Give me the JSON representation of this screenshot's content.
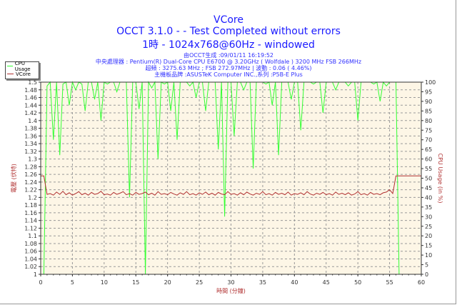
{
  "title": "VCore",
  "subtitle": "OCCT 3.1.0 -  - Test Completed without errors",
  "subtitle2": "1時 - 1024x768@60Hz - windowed",
  "info": [
    "由OCCT生成 :09/01/11 16:19:52",
    "中央處理器 : Pentium(R) Dual-Core CPU E6700 @ 3.20GHz ( Wolfdale ) 3200 MHz FSB 266MHz",
    "超頻 : 3275.63 MHz ; FSB 272.97MHz | 波動 : 0.06 ( 4.46%)",
    "主機板品牌 :ASUSTeK Computer INC.,系列 :P5B-E Plus"
  ],
  "colors": {
    "cpu": "#33ff33",
    "vcore": "#b03030",
    "plot_bg": "#fdf6e6",
    "title": "#1a1aff"
  },
  "chart_data": {
    "type": "line",
    "xlabel": "時間 (分鐘)",
    "ylabel": "電壓 (伏特)",
    "y2label": "CPU Usage (in %)",
    "xlim": [
      0,
      60
    ],
    "ylim": [
      1,
      1.5
    ],
    "y2lim": [
      0,
      100
    ],
    "xticks": [
      "0",
      "5",
      "10",
      "15",
      "20",
      "25",
      "30",
      "35",
      "40",
      "45",
      "50",
      "55",
      "60"
    ],
    "yticks": [
      "1",
      "1.02",
      "1.04",
      "1.06",
      "1.08",
      "1.1",
      "1.12",
      "1.14",
      "1.16",
      "1.18",
      "1.2",
      "1.22",
      "1.24",
      "1.26",
      "1.28",
      "1.3",
      "1.32",
      "1.34",
      "1.36",
      "1.38",
      "1.4",
      "1.42",
      "1.44",
      "1.46",
      "1.48",
      "1.5"
    ],
    "y2ticks": [
      "0",
      "5",
      "10",
      "15",
      "20",
      "25",
      "30",
      "35",
      "40",
      "45",
      "50",
      "55",
      "60",
      "65",
      "70",
      "75",
      "80",
      "85",
      "90",
      "95",
      "100"
    ],
    "legend": [
      "CPU Usage",
      "VCore"
    ],
    "legend_position": "top-left",
    "grid": true,
    "x_step": 0.5,
    "series": [
      {
        "name": "CPU Usage",
        "axis": "right",
        "values": [
          0,
          0,
          98,
          100,
          70,
          100,
          62,
          99,
          100,
          88,
          100,
          96,
          100,
          99,
          85,
          100,
          100,
          91,
          100,
          80,
          100,
          99,
          100,
          100,
          95,
          100,
          100,
          100,
          40,
          100,
          100,
          86,
          100,
          0,
          100,
          97,
          100,
          60,
          100,
          99,
          100,
          85,
          100,
          70,
          100,
          100,
          100,
          98,
          100,
          92,
          100,
          100,
          85,
          100,
          100,
          100,
          65,
          100,
          30,
          100,
          100,
          72,
          100,
          100,
          96,
          100,
          100,
          55,
          100,
          100,
          100,
          99,
          100,
          88,
          100,
          62,
          100,
          100,
          100,
          91,
          100,
          100,
          75,
          100,
          100,
          100,
          99,
          100,
          100,
          84,
          100,
          100,
          100,
          96,
          100,
          100,
          100,
          98,
          100,
          100,
          80,
          100,
          100,
          100,
          100,
          99,
          100,
          90,
          100,
          98,
          100,
          100,
          100,
          0,
          0,
          0,
          0,
          0,
          0,
          0,
          0
        ]
      },
      {
        "name": "VCore",
        "axis": "left",
        "values": [
          1.256,
          1.256,
          1.208,
          1.21,
          1.206,
          1.214,
          1.208,
          1.216,
          1.207,
          1.212,
          1.206,
          1.21,
          1.215,
          1.207,
          1.211,
          1.206,
          1.213,
          1.208,
          1.21,
          1.216,
          1.207,
          1.209,
          1.206,
          1.213,
          1.208,
          1.211,
          1.215,
          1.207,
          1.21,
          1.206,
          1.213,
          1.208,
          1.21,
          1.214,
          1.207,
          1.211,
          1.206,
          1.215,
          1.208,
          1.21,
          1.207,
          1.213,
          1.209,
          1.206,
          1.212,
          1.208,
          1.215,
          1.207,
          1.21,
          1.206,
          1.212,
          1.208,
          1.214,
          1.207,
          1.211,
          1.206,
          1.213,
          1.209,
          1.207,
          1.215,
          1.208,
          1.21,
          1.206,
          1.212,
          1.207,
          1.214,
          1.209,
          1.206,
          1.211,
          1.208,
          1.215,
          1.207,
          1.21,
          1.206,
          1.213,
          1.208,
          1.211,
          1.207,
          1.214,
          1.206,
          1.21,
          1.208,
          1.212,
          1.207,
          1.215,
          1.209,
          1.206,
          1.211,
          1.208,
          1.213,
          1.207,
          1.21,
          1.206,
          1.214,
          1.208,
          1.211,
          1.207,
          1.212,
          1.206,
          1.209,
          1.215,
          1.207,
          1.21,
          1.206,
          1.213,
          1.208,
          1.21,
          1.207,
          1.212,
          1.214,
          1.22,
          1.21,
          1.256,
          1.256,
          1.256,
          1.256,
          1.256,
          1.256,
          1.256,
          1.256,
          1.256
        ]
      }
    ]
  }
}
